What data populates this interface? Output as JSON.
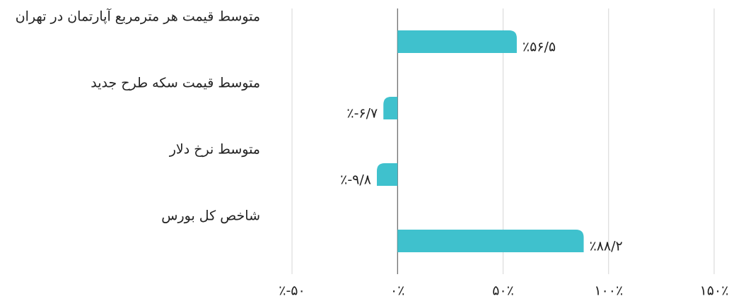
{
  "chart_data": {
    "type": "barh",
    "categories": [
      "متوسط قیمت هر مترمربع آپارتمان در تهران",
      "متوسط قیمت سکه طرح جدید",
      "متوسط نرخ دلار",
      "شاخص کل بورس"
    ],
    "values": [
      56.5,
      -6.7,
      -9.8,
      88.2
    ],
    "value_labels": [
      "٪۵۶/۵",
      "٪-۶/۷",
      "٪-۹/۸",
      "٪۸۸/۲"
    ],
    "color": "#3fc1cd",
    "xlim": [
      -50,
      150
    ],
    "xticks": [
      {
        "value": -50,
        "label": "٪-۵۰"
      },
      {
        "value": 0,
        "label": "۰٪"
      },
      {
        "value": 50,
        "label": "۵۰٪"
      },
      {
        "value": 100,
        "label": "۱۰۰٪"
      },
      {
        "value": 150,
        "label": "۱۵۰٪"
      }
    ],
    "grid": true
  }
}
